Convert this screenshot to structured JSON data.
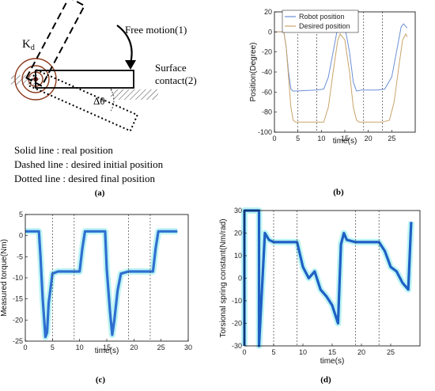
{
  "diagram": {
    "kd_label": "K",
    "kd_sub": "d",
    "free_motion": "Free motion(1)",
    "surface_contact_line1": "Surface",
    "surface_contact_line2": "contact(2)",
    "delta_theta": "Δθ",
    "legend": [
      "Solid line : real position",
      "Dashed line : desired initial position",
      "Dotted line : desired final position"
    ],
    "caption": "(a)"
  },
  "chart_data": [
    {
      "type": "line",
      "panel": "(b)",
      "xlabel": "time(s)",
      "ylabel": "Position(Degree)",
      "xlim": [
        0,
        30
      ],
      "ylim": [
        -100,
        20
      ],
      "xticks": [
        0,
        5,
        10,
        15,
        20,
        25
      ],
      "yticks": [
        20,
        0,
        -20,
        -40,
        -60,
        -80,
        -100
      ],
      "vlines": [
        5,
        9,
        19,
        23
      ],
      "legend_position": "top-right",
      "series": [
        {
          "name": "Robot position",
          "color": "#6b8fd6",
          "points": [
            [
              0,
              0
            ],
            [
              1,
              0
            ],
            [
              2,
              0
            ],
            [
              2.5,
              -15
            ],
            [
              3,
              -40
            ],
            [
              3.5,
              -57
            ],
            [
              4,
              -59
            ],
            [
              9,
              -58
            ],
            [
              10.5,
              -57
            ],
            [
              11.5,
              -45
            ],
            [
              12.5,
              -20
            ],
            [
              13.5,
              5
            ],
            [
              14,
              8
            ],
            [
              15,
              5
            ],
            [
              16,
              -20
            ],
            [
              16.8,
              -50
            ],
            [
              17.5,
              -59
            ],
            [
              18.5,
              -58
            ],
            [
              22,
              -58
            ],
            [
              23.5,
              -57
            ],
            [
              25,
              -45
            ],
            [
              26,
              -20
            ],
            [
              27,
              5
            ],
            [
              27.5,
              8
            ],
            [
              28.3,
              4
            ]
          ]
        },
        {
          "name": "Desired position",
          "color": "#c9a46a",
          "points": [
            [
              0,
              0
            ],
            [
              1,
              0
            ],
            [
              2,
              0
            ],
            [
              2.5,
              -15
            ],
            [
              3,
              -45
            ],
            [
              3.5,
              -75
            ],
            [
              4,
              -88
            ],
            [
              4.5,
              -90
            ],
            [
              9,
              -90
            ],
            [
              10.5,
              -90
            ],
            [
              11.5,
              -75
            ],
            [
              12.5,
              -40
            ],
            [
              13.5,
              -8
            ],
            [
              14,
              -2
            ],
            [
              15,
              -8
            ],
            [
              16,
              -40
            ],
            [
              16.8,
              -75
            ],
            [
              17.5,
              -88
            ],
            [
              18,
              -90
            ],
            [
              23,
              -90
            ],
            [
              24.5,
              -88
            ],
            [
              25.5,
              -70
            ],
            [
              26.5,
              -35
            ],
            [
              27.3,
              -8
            ],
            [
              28,
              -2
            ],
            [
              28.3,
              -5
            ]
          ]
        }
      ],
      "caption": "(b)"
    },
    {
      "type": "line",
      "panel": "(c)",
      "xlabel": "time(s)",
      "ylabel": "Measured torque(Nm)",
      "xlim": [
        0,
        30
      ],
      "ylim": [
        -25,
        5
      ],
      "xticks": [
        0,
        5,
        10,
        15,
        20,
        25,
        30
      ],
      "yticks": [
        5,
        0,
        -5,
        -10,
        -15,
        -20,
        -25
      ],
      "vlines": [
        5,
        9,
        19,
        23
      ],
      "series": [
        {
          "color": "#2f6fd0",
          "points": [
            [
              0,
              1
            ],
            [
              2.5,
              1
            ],
            [
              2.8,
              -5
            ],
            [
              3.2,
              -15
            ],
            [
              3.7,
              -24
            ],
            [
              4,
              -23
            ],
            [
              4.3,
              -16
            ],
            [
              4.7,
              -12
            ],
            [
              5,
              -9
            ],
            [
              6,
              -8.5
            ],
            [
              9,
              -8.5
            ],
            [
              10,
              -8.5
            ],
            [
              10.5,
              -3
            ],
            [
              11,
              1
            ],
            [
              14,
              1
            ],
            [
              14.7,
              1
            ],
            [
              15,
              -8
            ],
            [
              15.6,
              -18
            ],
            [
              16,
              -23.5
            ],
            [
              16.4,
              -20
            ],
            [
              17,
              -13
            ],
            [
              17.6,
              -9
            ],
            [
              19,
              -8.5
            ],
            [
              22,
              -8.5
            ],
            [
              23.5,
              -8.5
            ],
            [
              24,
              -3
            ],
            [
              24.5,
              1
            ],
            [
              27,
              1
            ],
            [
              28,
              1
            ]
          ]
        }
      ],
      "caption": "(c)"
    },
    {
      "type": "line",
      "panel": "(d)",
      "xlabel": "time(s)",
      "ylabel": "Torsional spring constant(Nm/rad)",
      "xlim": [
        0,
        30
      ],
      "ylim": [
        -30,
        30
      ],
      "xticks": [
        0,
        5,
        10,
        15,
        20,
        25
      ],
      "yticks": [
        30,
        20,
        10,
        0,
        -10,
        -20,
        -30
      ],
      "vlines": [
        5,
        9,
        19,
        23
      ],
      "series": [
        {
          "color": "#1f5fc4",
          "points": [
            [
              0,
              -30
            ],
            [
              0,
              30
            ],
            [
              2.5,
              30
            ],
            [
              2.5,
              -30
            ],
            [
              3.5,
              20
            ],
            [
              4.2,
              17
            ],
            [
              5,
              16
            ],
            [
              9,
              16
            ],
            [
              10,
              5
            ],
            [
              11,
              0
            ],
            [
              12,
              3
            ],
            [
              13,
              -5
            ],
            [
              14,
              -8
            ],
            [
              15,
              -12
            ],
            [
              16,
              -20
            ],
            [
              16.5,
              15
            ],
            [
              17,
              20
            ],
            [
              17.5,
              17
            ],
            [
              19,
              16
            ],
            [
              23,
              16
            ],
            [
              24,
              12
            ],
            [
              25,
              5
            ],
            [
              26,
              3
            ],
            [
              27,
              -2
            ],
            [
              28,
              -5
            ],
            [
              28.5,
              25
            ]
          ]
        }
      ],
      "caption": "(d)"
    }
  ]
}
